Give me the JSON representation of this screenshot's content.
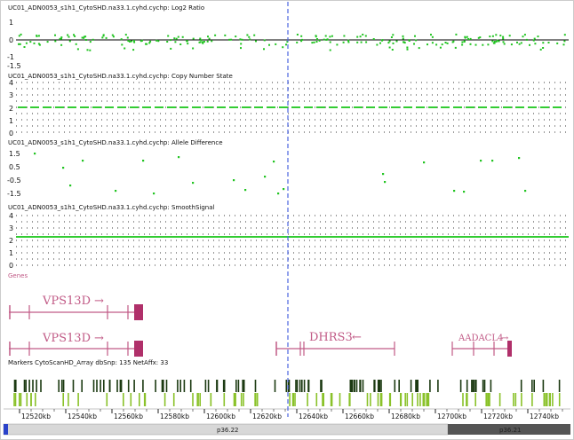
{
  "colors": {
    "point": "#22c422",
    "copy_number_line": "#33cc33",
    "gene": "#c15a86",
    "gene_dark": "#b0306a",
    "marker_dark": "#1c3a12",
    "marker_light": "#8ac22a",
    "cursor": "#4a64e0",
    "dot_grid": "#333333",
    "band_dark": "#555555",
    "band_light": "#d8d8d8"
  },
  "tracks": {
    "log2_ratio": {
      "title": "UC01_ADN0053_s1h1_CytoSHD.na33.1.cyhd.cychp: Log2 Ratio",
      "ticks": [
        "1",
        "0",
        "-1",
        "-1.5"
      ]
    },
    "copy_number_state": {
      "title": "UC01_ADN0053_s1h1_CytoSHD.na33.1.cyhd.cychp: Copy Number State",
      "ticks": [
        "4",
        "3",
        "2",
        "1",
        "0"
      ]
    },
    "allele_difference": {
      "title": "UC01_ADN0053_s1h1_CytoSHD.na33.1.cyhd.cychp: Allele Difference",
      "ticks": [
        "1.5",
        "0.5",
        "-0.5",
        "-1.5"
      ]
    },
    "smooth_signal": {
      "title": "UC01_ADN0053_s1h1_CytoSHD.na33.1.cyhd.cychp: SmoothSignal",
      "ticks": [
        "4",
        "3",
        "2",
        "1",
        "0"
      ]
    }
  },
  "genes_track": {
    "title": "Genes",
    "genes": [
      {
        "name": "VPS13D",
        "arrow": "→"
      },
      {
        "name": "VPS13D",
        "arrow": "→"
      },
      {
        "name": "DHRS3",
        "arrow": "←"
      },
      {
        "name": "AADACL4",
        "arrow": "→"
      }
    ]
  },
  "markers_track": {
    "title": "Markers CytoScanHD_Array dbSnp: 135 NetAffx: 33"
  },
  "axis": {
    "kb_labels": [
      "12520kb",
      "12540kb",
      "12560kb",
      "12580kb",
      "12600kb",
      "12620kb",
      "12640kb",
      "12660kb",
      "12680kb",
      "12700kb",
      "12720kb",
      "12740kb"
    ]
  },
  "cytobands": {
    "left": "p36.22",
    "right": "p36.21"
  }
}
